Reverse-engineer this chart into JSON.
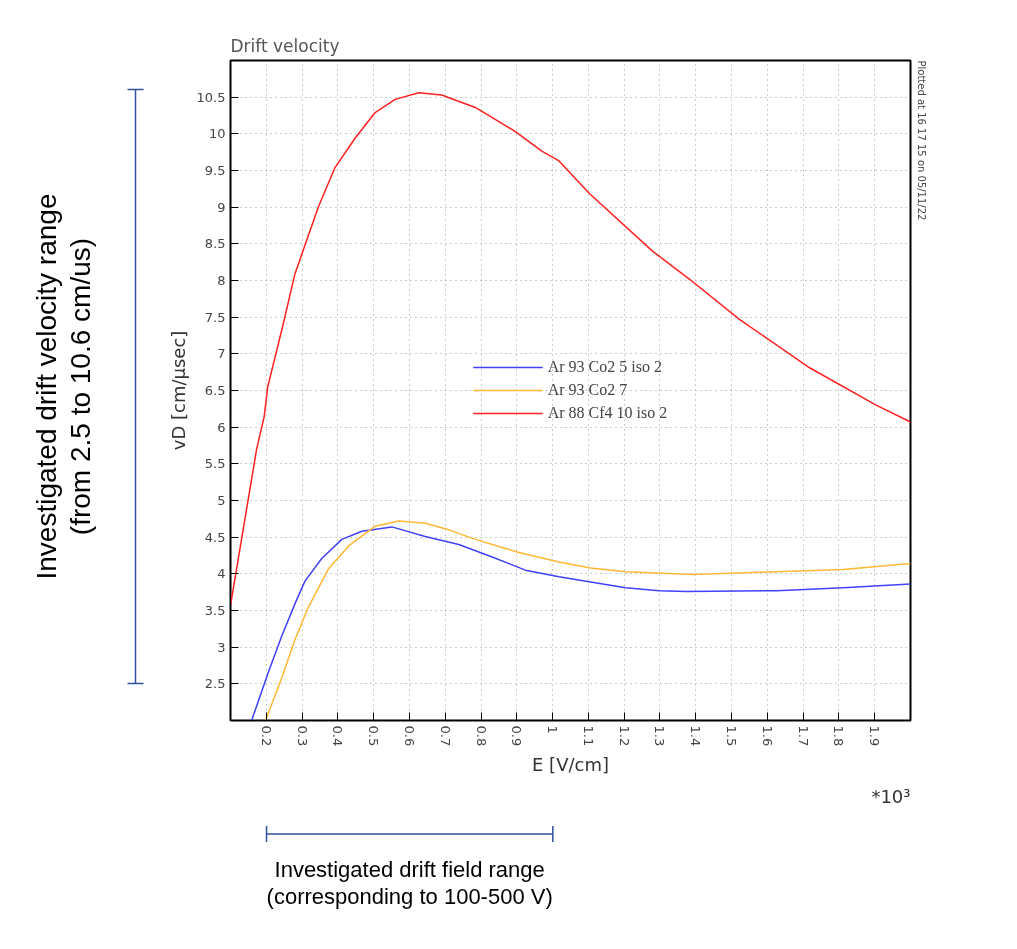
{
  "chart_data": {
    "type": "line",
    "title": "Drift velocity",
    "xlabel": "E [V/cm]",
    "ylabel": "vD [cm/μsec]",
    "xlim": [
      0.1,
      2.0
    ],
    "ylim": [
      2.0,
      11.0
    ],
    "xticks": [
      0.2,
      0.3,
      0.4,
      0.5,
      0.6,
      0.7,
      0.8,
      0.9,
      1,
      1.1,
      1.2,
      1.3,
      1.4,
      1.5,
      1.6,
      1.7,
      1.8,
      1.9
    ],
    "yticks": [
      2.5,
      3,
      3.5,
      4,
      4.5,
      5,
      5.5,
      6,
      6.5,
      7,
      7.5,
      8,
      8.5,
      9,
      9.5,
      10,
      10.5
    ],
    "grid": true,
    "legend": "center",
    "line_style": "solid",
    "series": [
      {
        "name": "Ar 93 Co2 5 iso 2",
        "color": "#4040ff",
        "x": [
          0.159,
          0.206,
          0.243,
          0.28,
          0.308,
          0.355,
          0.411,
          0.467,
          0.551,
          0.644,
          0.738,
          0.831,
          0.924,
          1.018,
          1.106,
          1.204,
          1.298,
          1.373,
          1.625,
          1.812,
          2.0
        ],
        "values": [
          2.0,
          2.66,
          3.15,
          3.59,
          3.9,
          4.21,
          4.47,
          4.58,
          4.64,
          4.51,
          4.4,
          4.23,
          4.05,
          3.96,
          3.89,
          3.81,
          3.77,
          3.76,
          3.77,
          3.81,
          3.86
        ]
      },
      {
        "name": "Ar 93 Co2 7",
        "color": "#ffb833",
        "x": [
          0.198,
          0.243,
          0.28,
          0.318,
          0.374,
          0.43,
          0.504,
          0.57,
          0.644,
          0.71,
          0.784,
          0.906,
          1.018,
          1.106,
          1.204,
          1.391,
          1.578,
          1.812,
          2.0
        ],
        "values": [
          2.0,
          2.58,
          3.1,
          3.55,
          4.07,
          4.38,
          4.65,
          4.72,
          4.69,
          4.6,
          4.47,
          4.29,
          4.16,
          4.08,
          4.03,
          3.99,
          4.02,
          4.06,
          4.14
        ]
      },
      {
        "name": "Ar 88 Cf4 10 iso 2",
        "color": "#ff2020",
        "x": [
          0.1,
          0.173,
          0.194,
          0.204,
          0.248,
          0.28,
          0.308,
          0.346,
          0.392,
          0.448,
          0.504,
          0.56,
          0.626,
          0.69,
          0.784,
          0.896,
          0.971,
          1.018,
          1.102,
          1.279,
          1.382,
          1.522,
          1.718,
          1.904,
          2.0
        ],
        "values": [
          3.57,
          5.7,
          6.14,
          6.55,
          7.42,
          8.09,
          8.48,
          9.01,
          9.54,
          9.94,
          10.29,
          10.47,
          10.56,
          10.53,
          10.36,
          10.03,
          9.76,
          9.63,
          9.19,
          8.4,
          8.02,
          7.47,
          6.81,
          6.3,
          6.07
        ]
      }
    ],
    "annotations": [
      "Plotted at 16 17 15 on 05/11/22",
      "*10³",
      "Investigated drift velocity range\n(from 2.5 to 10.6 cm/us)",
      "Investigated drift field range\n(corresponding to 100-500 V)"
    ]
  }
}
